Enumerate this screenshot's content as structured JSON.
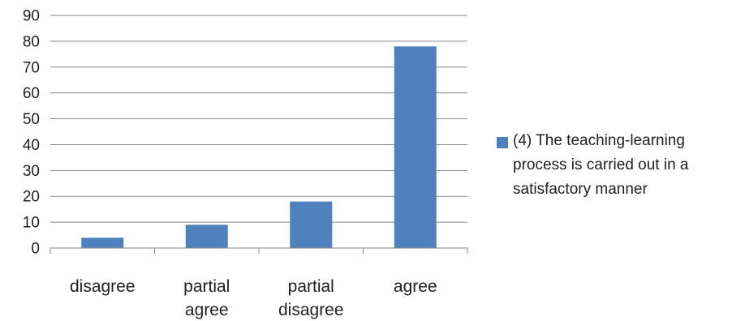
{
  "chart_data": {
    "type": "bar",
    "categories": [
      [
        "disagree"
      ],
      [
        "partial",
        "agree"
      ],
      [
        "partial",
        "disagree"
      ],
      [
        "agree"
      ]
    ],
    "series": [
      {
        "name": "(4) The teaching-learning process is carried out in a satisfactory manner",
        "values": [
          4,
          9,
          18,
          78
        ],
        "color": "#4f81bd"
      }
    ],
    "ylim": [
      0,
      90
    ],
    "yticks": [
      0,
      10,
      20,
      30,
      40,
      50,
      60,
      70,
      80,
      90
    ],
    "grid": true,
    "legend_position": "right",
    "title": "",
    "xlabel": "",
    "ylabel": ""
  },
  "legend": {
    "lines": [
      "(4) The teaching-learning",
      "process is carried out in a",
      "satisfactory manner"
    ]
  }
}
